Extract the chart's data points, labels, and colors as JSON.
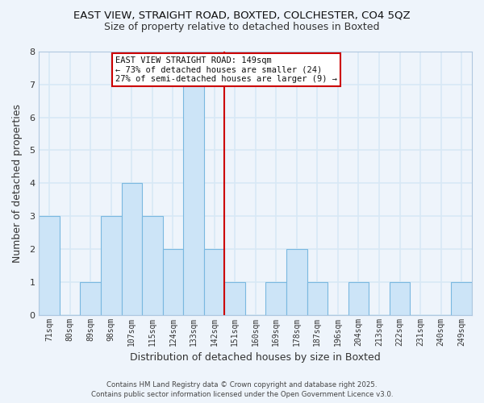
{
  "title": "EAST VIEW, STRAIGHT ROAD, BOXTED, COLCHESTER, CO4 5QZ",
  "subtitle": "Size of property relative to detached houses in Boxted",
  "xlabel": "Distribution of detached houses by size in Boxted",
  "ylabel": "Number of detached properties",
  "categories": [
    "71sqm",
    "80sqm",
    "89sqm",
    "98sqm",
    "107sqm",
    "115sqm",
    "124sqm",
    "133sqm",
    "142sqm",
    "151sqm",
    "160sqm",
    "169sqm",
    "178sqm",
    "187sqm",
    "196sqm",
    "204sqm",
    "213sqm",
    "222sqm",
    "231sqm",
    "240sqm",
    "249sqm"
  ],
  "values": [
    3,
    0,
    1,
    3,
    4,
    3,
    2,
    7,
    2,
    1,
    0,
    1,
    2,
    1,
    0,
    1,
    0,
    1,
    0,
    0,
    1
  ],
  "bar_color": "#cce4f7",
  "bar_edge_color": "#7ab8e0",
  "background_color": "#eef4fb",
  "grid_color": "#d8e8f5",
  "property_line_x": 8.5,
  "annotation_line1": "EAST VIEW STRAIGHT ROAD: 149sqm",
  "annotation_line2": "← 73% of detached houses are smaller (24)",
  "annotation_line3": "27% of semi-detached houses are larger (9) →",
  "annotation_box_color": "#cc0000",
  "ylim": [
    0,
    8
  ],
  "yticks": [
    0,
    1,
    2,
    3,
    4,
    5,
    6,
    7,
    8
  ],
  "footer_line1": "Contains HM Land Registry data © Crown copyright and database right 2025.",
  "footer_line2": "Contains public sector information licensed under the Open Government Licence v3.0."
}
